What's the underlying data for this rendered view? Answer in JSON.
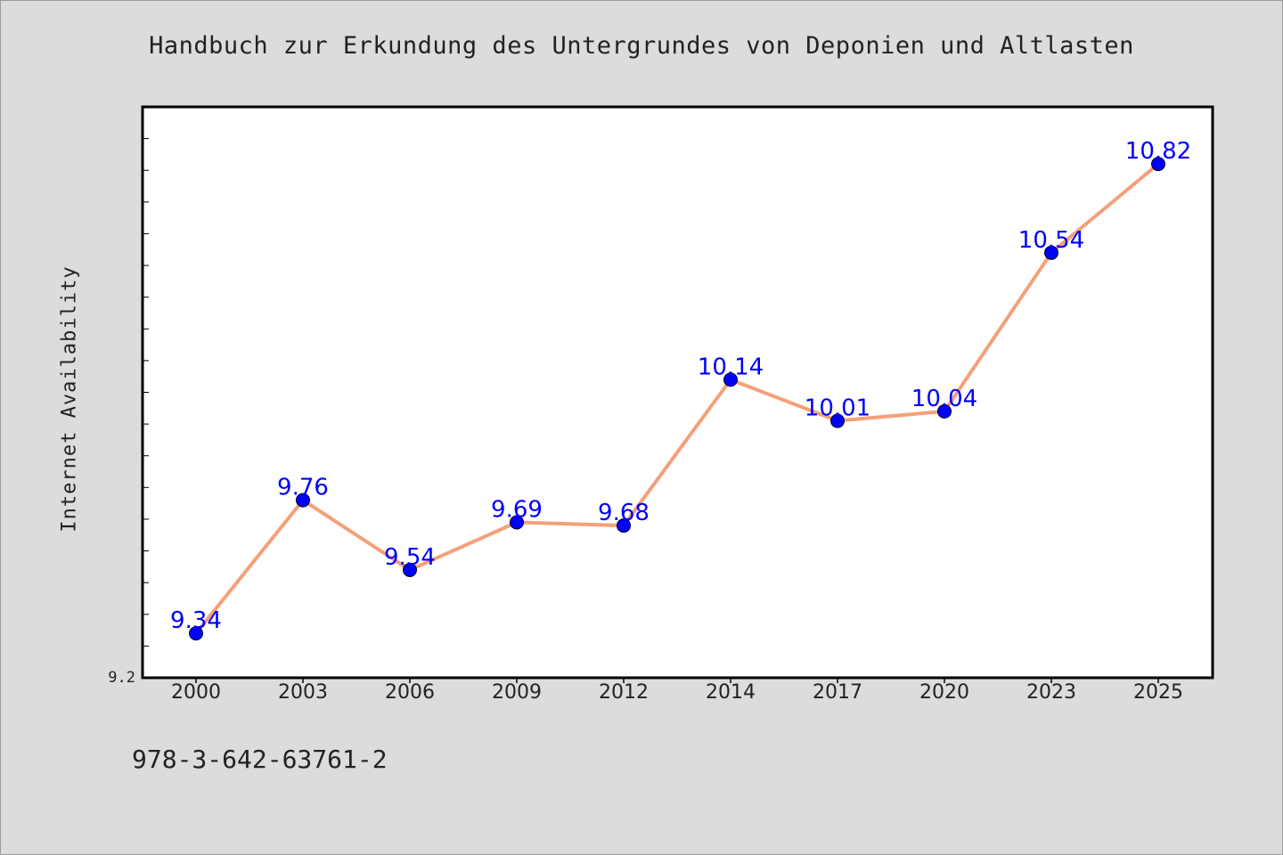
{
  "chart_data": {
    "type": "line",
    "title": "Handbuch zur Erkundung des Untergrundes von Deponien und Altlasten",
    "xlabel": "",
    "ylabel": "Internet Availability",
    "x": [
      "2000",
      "2003",
      "2006",
      "2009",
      "2012",
      "2014",
      "2017",
      "2020",
      "2023",
      "2025"
    ],
    "series": [
      {
        "values": [
          9.34,
          9.76,
          9.54,
          9.69,
          9.68,
          10.14,
          10.01,
          10.04,
          10.54,
          10.82
        ]
      }
    ],
    "data_labels": [
      "9.34",
      "9.76",
      "9.54",
      "9.69",
      "9.68",
      "10.14",
      "10.01",
      "10.04",
      "10.54",
      "10.82"
    ],
    "y_tick_labels": [
      "9.2"
    ],
    "ylim": [
      9.2,
      11.0
    ],
    "grid": false,
    "line_color": "#f4a07a",
    "marker_color": "#0000ff",
    "label_color": "#0000ff"
  },
  "footer": {
    "note": "978-3-642-63761-2"
  }
}
